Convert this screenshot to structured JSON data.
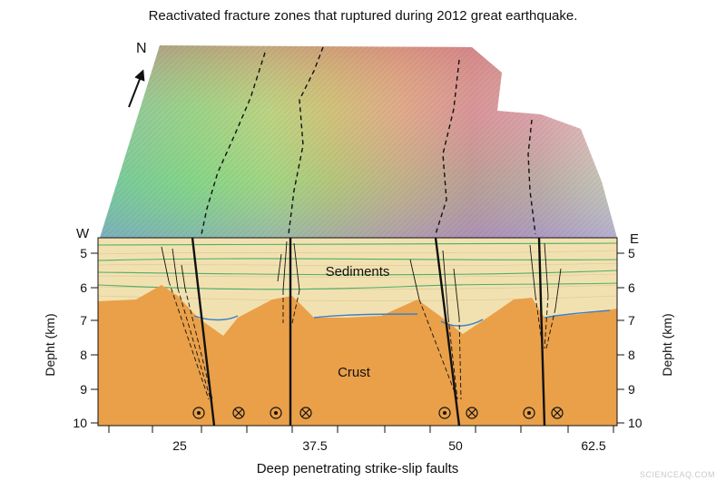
{
  "title": "Reactivated fracture zones that ruptured during 2012 great earthquake.",
  "north_label": "N",
  "west_label": "W",
  "east_label": "E",
  "y_axis_label": "Depht (km)",
  "depth_ticks": [
    "5",
    "6",
    "7",
    "8",
    "9",
    "10"
  ],
  "x_ticks": [
    "25",
    "37.5",
    "50",
    "62.5"
  ],
  "x_axis_label": "Deep penetrating strike-slip faults",
  "layer_labels": {
    "sediments": "Sediments",
    "crust": "Crust"
  },
  "watermark": "SCIENCEAQ.COM",
  "colors": {
    "crust": "#e9a049",
    "sediments": "#f2e1b0",
    "green_horizon": "#4fae6a",
    "blue_horizon": "#3e7fc4",
    "fault_line": "#111111"
  },
  "symbols": [
    "out-of-page",
    "into-page",
    "out-of-page",
    "into-page",
    "out-of-page",
    "into-page",
    "out-of-page",
    "into-page"
  ]
}
